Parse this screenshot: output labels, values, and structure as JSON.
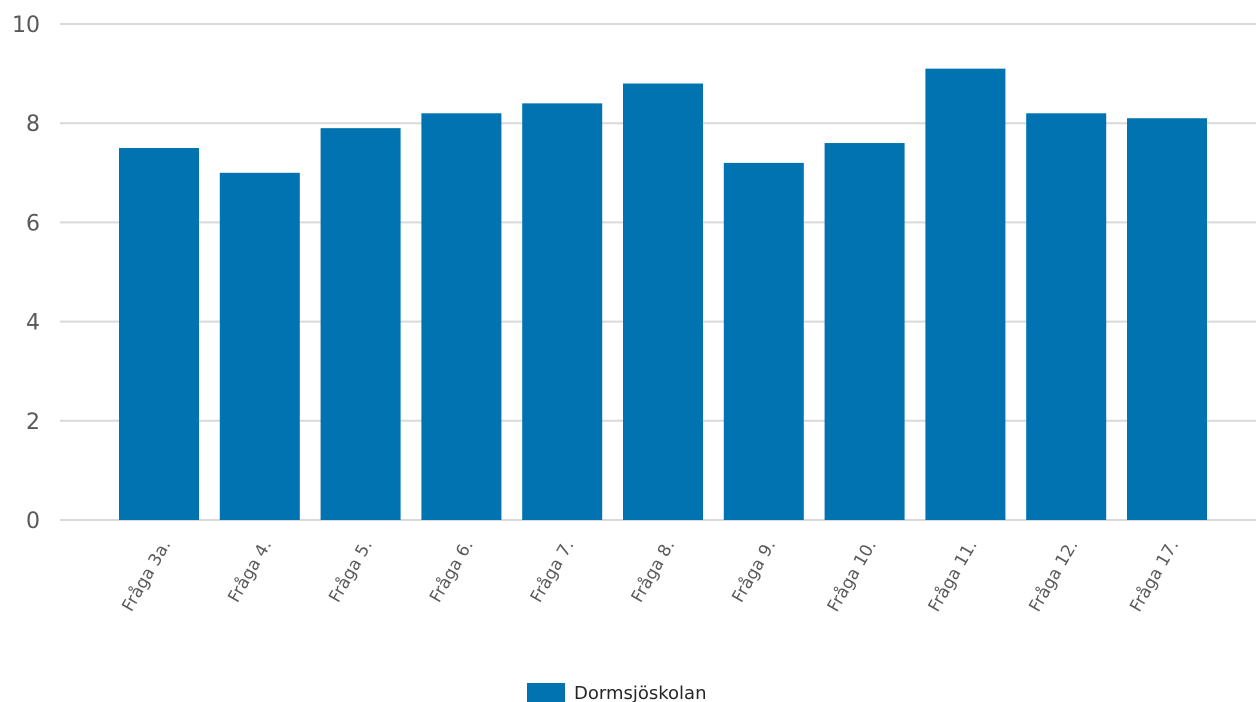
{
  "chart_data": {
    "type": "bar",
    "categories": [
      "Fråga 3a.",
      "Fråga 4.",
      "Fråga 5.",
      "Fråga 6.",
      "Fråga 7.",
      "Fråga 8.",
      "Fråga 9.",
      "Fråga 10.",
      "Fråga 11.",
      "Fråga 12.",
      "Fråga 17."
    ],
    "series": [
      {
        "name": "Dormsjöskolan",
        "values": [
          7.5,
          7.0,
          7.9,
          8.2,
          8.4,
          8.8,
          7.2,
          7.6,
          9.1,
          8.2,
          8.1
        ]
      }
    ],
    "ylim": [
      0,
      10
    ],
    "yticks": [
      0,
      2,
      4,
      6,
      8,
      10
    ],
    "grid": true,
    "legend": "bottom",
    "colors": {
      "bar": "#0073b0",
      "grid": "#d9d9d9",
      "axis": "#d9d9d9"
    }
  }
}
